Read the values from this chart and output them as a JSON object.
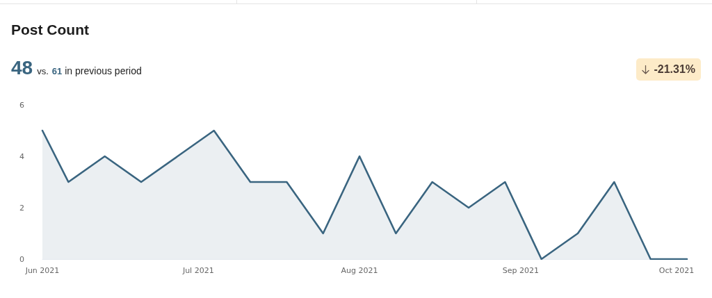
{
  "chart_data": {
    "type": "area",
    "title": "Post Count",
    "annotations": [
      "48",
      "vs.",
      "61",
      "in previous period",
      "-21.31%"
    ],
    "x": [
      "2021-06-01",
      "2021-06-06",
      "2021-06-13",
      "2021-06-20",
      "2021-06-27",
      "2021-07-04",
      "2021-07-11",
      "2021-07-18",
      "2021-07-25",
      "2021-08-01",
      "2021-08-08",
      "2021-08-15",
      "2021-08-22",
      "2021-08-29",
      "2021-09-05",
      "2021-09-12",
      "2021-09-19",
      "2021-09-26",
      "2021-10-03"
    ],
    "series": [
      {
        "color": "#3a6580",
        "values": [
          5,
          3,
          4,
          3,
          4,
          5,
          3,
          3,
          1,
          4,
          1,
          3,
          2,
          3,
          0,
          1,
          3,
          0,
          0
        ]
      }
    ],
    "xlim": [
      "2021-06-01",
      "2021-10-03"
    ],
    "xticks": [
      {
        "value": "2021-06-01",
        "label": "Jun 2021"
      },
      {
        "value": "2021-07-01",
        "label": "Jul 2021"
      },
      {
        "value": "2021-08-01",
        "label": "Aug 2021"
      },
      {
        "value": "2021-09-01",
        "label": "Sep 2021"
      },
      {
        "value": "2021-10-01",
        "label": "Oct 2021"
      }
    ],
    "ylim": [
      0,
      6
    ],
    "yticks": [
      0,
      2,
      4,
      6
    ]
  }
}
